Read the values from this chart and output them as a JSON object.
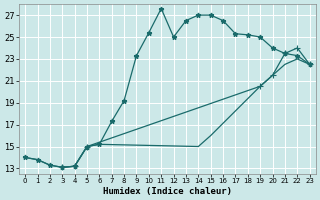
{
  "xlabel": "Humidex (Indice chaleur)",
  "background_color": "#cce8e8",
  "grid_color": "#b8d8d8",
  "line_color": "#1a6b6b",
  "xlim": [
    -0.5,
    23.5
  ],
  "ylim": [
    12.5,
    28.0
  ],
  "yticks": [
    13,
    15,
    17,
    19,
    21,
    23,
    25,
    27
  ],
  "xticks": [
    0,
    1,
    2,
    3,
    4,
    5,
    6,
    7,
    8,
    9,
    10,
    11,
    12,
    13,
    14,
    15,
    16,
    17,
    18,
    19,
    20,
    21,
    22,
    23
  ],
  "curve1_x": [
    0,
    1,
    2,
    3,
    4,
    5,
    6,
    7,
    8,
    9,
    10,
    11,
    12,
    13,
    14,
    15,
    16,
    17,
    18,
    19,
    20,
    21,
    22,
    23
  ],
  "curve1_y": [
    14.0,
    13.8,
    13.3,
    13.1,
    13.2,
    15.0,
    15.2,
    17.3,
    19.2,
    23.3,
    25.4,
    27.6,
    25.0,
    26.5,
    27.0,
    27.0,
    26.5,
    25.3,
    25.2,
    25.0,
    24.0,
    23.5,
    23.3,
    22.5
  ],
  "curve2_x": [
    3,
    4,
    5,
    19,
    20,
    21,
    22,
    23
  ],
  "curve2_y": [
    13.1,
    13.2,
    15.0,
    20.5,
    21.5,
    23.5,
    24.0,
    22.5
  ],
  "curve3_x": [
    0,
    1,
    2,
    3,
    4,
    5,
    6,
    14,
    15,
    19,
    20,
    21,
    22,
    23
  ],
  "curve3_y": [
    14.0,
    13.8,
    13.3,
    13.1,
    13.2,
    15.0,
    15.2,
    15.0,
    16.0,
    20.5,
    21.5,
    22.5,
    23.0,
    22.5
  ]
}
